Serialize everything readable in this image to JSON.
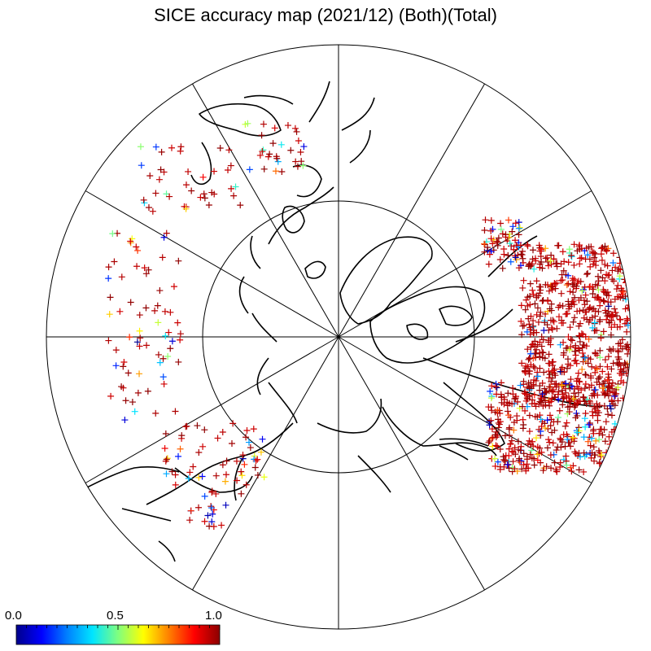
{
  "title": "SICE accuracy map (2021/12) (Both)(Total)",
  "colorbar": {
    "min_label": "0.0",
    "mid_label": "0.5",
    "max_label": "1.0",
    "stops": [
      "#00008b",
      "#0000ff",
      "#0080ff",
      "#00e5ff",
      "#7fff7f",
      "#ffff00",
      "#ff8000",
      "#ff0000",
      "#8b0000"
    ]
  },
  "map": {
    "projection": "north polar stereographic",
    "meridian_spacing_deg": 30,
    "latitude_circle": true,
    "marker": "+",
    "coast_color": "#000000"
  }
}
